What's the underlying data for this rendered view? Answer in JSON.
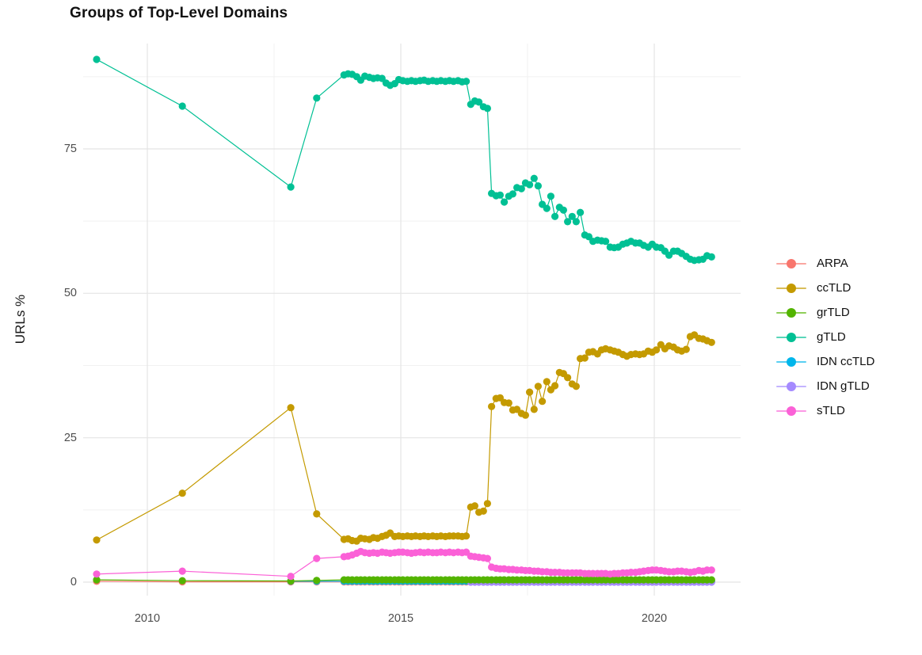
{
  "title": "Groups of Top-Level Domains",
  "legend": {
    "items": [
      {
        "label": "ARPA",
        "color": "#F8766D"
      },
      {
        "label": "ccTLD",
        "color": "#C49A00"
      },
      {
        "label": "grTLD",
        "color": "#53B400"
      },
      {
        "label": "gTLD",
        "color": "#00C094"
      },
      {
        "label": "IDN ccTLD",
        "color": "#00B6EB"
      },
      {
        "label": "IDN gTLD",
        "color": "#A58AFF"
      },
      {
        "label": "sTLD",
        "color": "#FB61D7"
      }
    ]
  },
  "chart_data": {
    "type": "line",
    "title": "Groups of Top-Level Domains",
    "xlabel": "",
    "ylabel": "URLs %",
    "x_ticks": [
      2010,
      2015,
      2020
    ],
    "x_tick_labels": [
      "2010",
      "2015",
      "2020"
    ],
    "y_ticks": [
      0,
      25,
      50,
      75
    ],
    "y_tick_labels": [
      "0",
      "25",
      "50",
      "75"
    ],
    "x_minor_ticks": [
      2012.5,
      2017.5
    ],
    "y_minor_ticks": [
      12.5,
      37.5,
      62.5,
      87.5
    ],
    "xlim": [
      2008.7,
      2021.7
    ],
    "ylim": [
      -2.3,
      93.2
    ],
    "grid": true,
    "legend_position": "right",
    "grid_major_color": "#e4e4e4",
    "grid_minor_color": "#f1f1f1",
    "axis_text_color": "#4d4d4d",
    "x_dense": [
      2013.88,
      2013.96,
      2014.04,
      2014.13,
      2014.21,
      2014.29,
      2014.38,
      2014.46,
      2014.54,
      2014.63,
      2014.71,
      2014.79,
      2014.88,
      2014.96,
      2015.04,
      2015.13,
      2015.21,
      2015.29,
      2015.38,
      2015.46,
      2015.54,
      2015.63,
      2015.71,
      2015.79,
      2015.88,
      2015.96,
      2016.04,
      2016.13,
      2016.21,
      2016.29,
      2016.38,
      2016.46,
      2016.54,
      2016.63,
      2016.71,
      2016.79,
      2016.88,
      2016.96,
      2017.04,
      2017.13,
      2017.21,
      2017.29,
      2017.38,
      2017.46,
      2017.54,
      2017.63,
      2017.71,
      2017.79,
      2017.88,
      2017.96,
      2018.04,
      2018.13,
      2018.21,
      2018.29,
      2018.38,
      2018.46,
      2018.54,
      2018.63,
      2018.71,
      2018.79,
      2018.88,
      2018.96,
      2019.04,
      2019.13,
      2019.21,
      2019.29,
      2019.38,
      2019.46,
      2019.54,
      2019.63,
      2019.71,
      2019.79,
      2019.88,
      2019.96,
      2020.04,
      2020.13,
      2020.21,
      2020.29,
      2020.38,
      2020.46,
      2020.54,
      2020.63,
      2020.71,
      2020.79,
      2020.88,
      2020.96,
      2021.04,
      2021.13
    ],
    "draw_order": [
      "ARPA",
      "IDN ccTLD",
      "IDN gTLD",
      "grTLD",
      "ccTLD",
      "gTLD",
      "sTLD"
    ],
    "series": [
      {
        "name": "ARPA",
        "color": "#F8766D",
        "early": [
          [
            2009,
            0.15
          ],
          [
            2010.69,
            0.05
          ],
          [
            2012.83,
            0.05
          ],
          [
            2013.34,
            0.05
          ]
        ],
        "dense_fill": 0.05
      },
      {
        "name": "ccTLD",
        "color": "#C49A00",
        "early": [
          [
            2009,
            7.3
          ],
          [
            2010.69,
            15.4
          ],
          [
            2012.83,
            30.2
          ],
          [
            2013.34,
            11.8
          ]
        ],
        "dense_y": [
          7.4,
          7.5,
          7.2,
          7.1,
          7.6,
          7.5,
          7.4,
          7.7,
          7.6,
          7.9,
          8.1,
          8.5,
          7.9,
          8.0,
          7.9,
          8.0,
          7.9,
          8.0,
          7.9,
          8.0,
          7.9,
          8.0,
          7.9,
          8.0,
          7.9,
          8.0,
          8.0,
          8.0,
          7.9,
          8.0,
          13.0,
          13.2,
          12.1,
          12.3,
          13.6,
          30.4,
          31.8,
          31.9,
          31.1,
          31.0,
          29.8,
          29.9,
          29.2,
          28.9,
          32.9,
          29.9,
          33.9,
          31.3,
          34.7,
          33.3,
          34.0,
          36.3,
          36.1,
          35.4,
          34.3,
          33.9,
          38.7,
          38.8,
          39.8,
          39.9,
          39.5,
          40.2,
          40.4,
          40.2,
          40.0,
          39.8,
          39.4,
          39.1,
          39.4,
          39.5,
          39.4,
          39.5,
          40.0,
          39.8,
          40.2,
          41.1,
          40.4,
          40.9,
          40.7,
          40.2,
          40.0,
          40.3,
          42.5,
          42.8,
          42.2,
          42.1,
          41.8,
          41.5
        ]
      },
      {
        "name": "grTLD",
        "color": "#53B400",
        "early": [
          [
            2009,
            0.4
          ],
          [
            2010.69,
            0.25
          ],
          [
            2012.83,
            0.2
          ],
          [
            2013.34,
            0.3
          ]
        ],
        "dense_fill": 0.4
      },
      {
        "name": "gTLD",
        "color": "#00C094",
        "early": [
          [
            2009,
            90.5
          ],
          [
            2010.69,
            82.4
          ],
          [
            2012.83,
            68.4
          ],
          [
            2013.34,
            83.8
          ]
        ],
        "dense_y": [
          87.8,
          88.0,
          87.9,
          87.5,
          86.9,
          87.6,
          87.4,
          87.2,
          87.3,
          87.2,
          86.4,
          86.0,
          86.3,
          87.0,
          86.8,
          86.7,
          86.8,
          86.7,
          86.8,
          86.9,
          86.7,
          86.8,
          86.7,
          86.8,
          86.7,
          86.8,
          86.7,
          86.8,
          86.6,
          86.7,
          82.7,
          83.3,
          83.1,
          82.3,
          82.0,
          67.3,
          66.9,
          67.0,
          65.8,
          66.8,
          67.2,
          68.3,
          68.1,
          69.1,
          68.8,
          69.9,
          68.6,
          65.4,
          64.7,
          66.8,
          63.3,
          64.9,
          64.4,
          62.4,
          63.3,
          62.4,
          64.0,
          60.1,
          59.8,
          59.0,
          59.2,
          59.1,
          59.0,
          58.0,
          57.9,
          58.0,
          58.5,
          58.7,
          59.0,
          58.7,
          58.7,
          58.3,
          58.0,
          58.5,
          58.0,
          57.9,
          57.3,
          56.6,
          57.3,
          57.3,
          56.9,
          56.4,
          55.9,
          55.7,
          55.8,
          55.9,
          56.5,
          56.3
        ]
      },
      {
        "name": "IDN ccTLD",
        "color": "#00B6EB",
        "early": [
          [
            2012.83,
            0.15
          ],
          [
            2013.34,
            0.15
          ]
        ],
        "dense_fill": 0.15
      },
      {
        "name": "IDN gTLD",
        "color": "#A58AFF",
        "early": [],
        "dense_fill": 0.0,
        "dense_from": 2016.38
      },
      {
        "name": "sTLD",
        "color": "#FB61D7",
        "early": [
          [
            2009,
            1.4
          ],
          [
            2010.69,
            1.9
          ],
          [
            2012.83,
            1.0
          ],
          [
            2013.34,
            4.1
          ]
        ],
        "dense_y": [
          4.4,
          4.5,
          4.7,
          5.0,
          5.3,
          5.1,
          5.0,
          5.1,
          5.0,
          5.2,
          5.1,
          5.0,
          5.1,
          5.2,
          5.2,
          5.1,
          5.0,
          5.1,
          5.2,
          5.1,
          5.2,
          5.1,
          5.1,
          5.2,
          5.1,
          5.2,
          5.1,
          5.2,
          5.1,
          5.2,
          4.5,
          4.4,
          4.3,
          4.2,
          4.1,
          2.6,
          2.4,
          2.3,
          2.3,
          2.2,
          2.2,
          2.1,
          2.1,
          2.0,
          2.0,
          1.9,
          1.9,
          1.8,
          1.8,
          1.7,
          1.7,
          1.7,
          1.6,
          1.6,
          1.6,
          1.6,
          1.6,
          1.5,
          1.5,
          1.5,
          1.5,
          1.5,
          1.5,
          1.4,
          1.5,
          1.5,
          1.6,
          1.6,
          1.7,
          1.7,
          1.8,
          1.9,
          2.0,
          2.1,
          2.1,
          2.0,
          1.9,
          1.8,
          1.8,
          1.9,
          1.9,
          1.8,
          1.7,
          1.8,
          2.0,
          1.9,
          2.1,
          2.1
        ]
      }
    ]
  }
}
